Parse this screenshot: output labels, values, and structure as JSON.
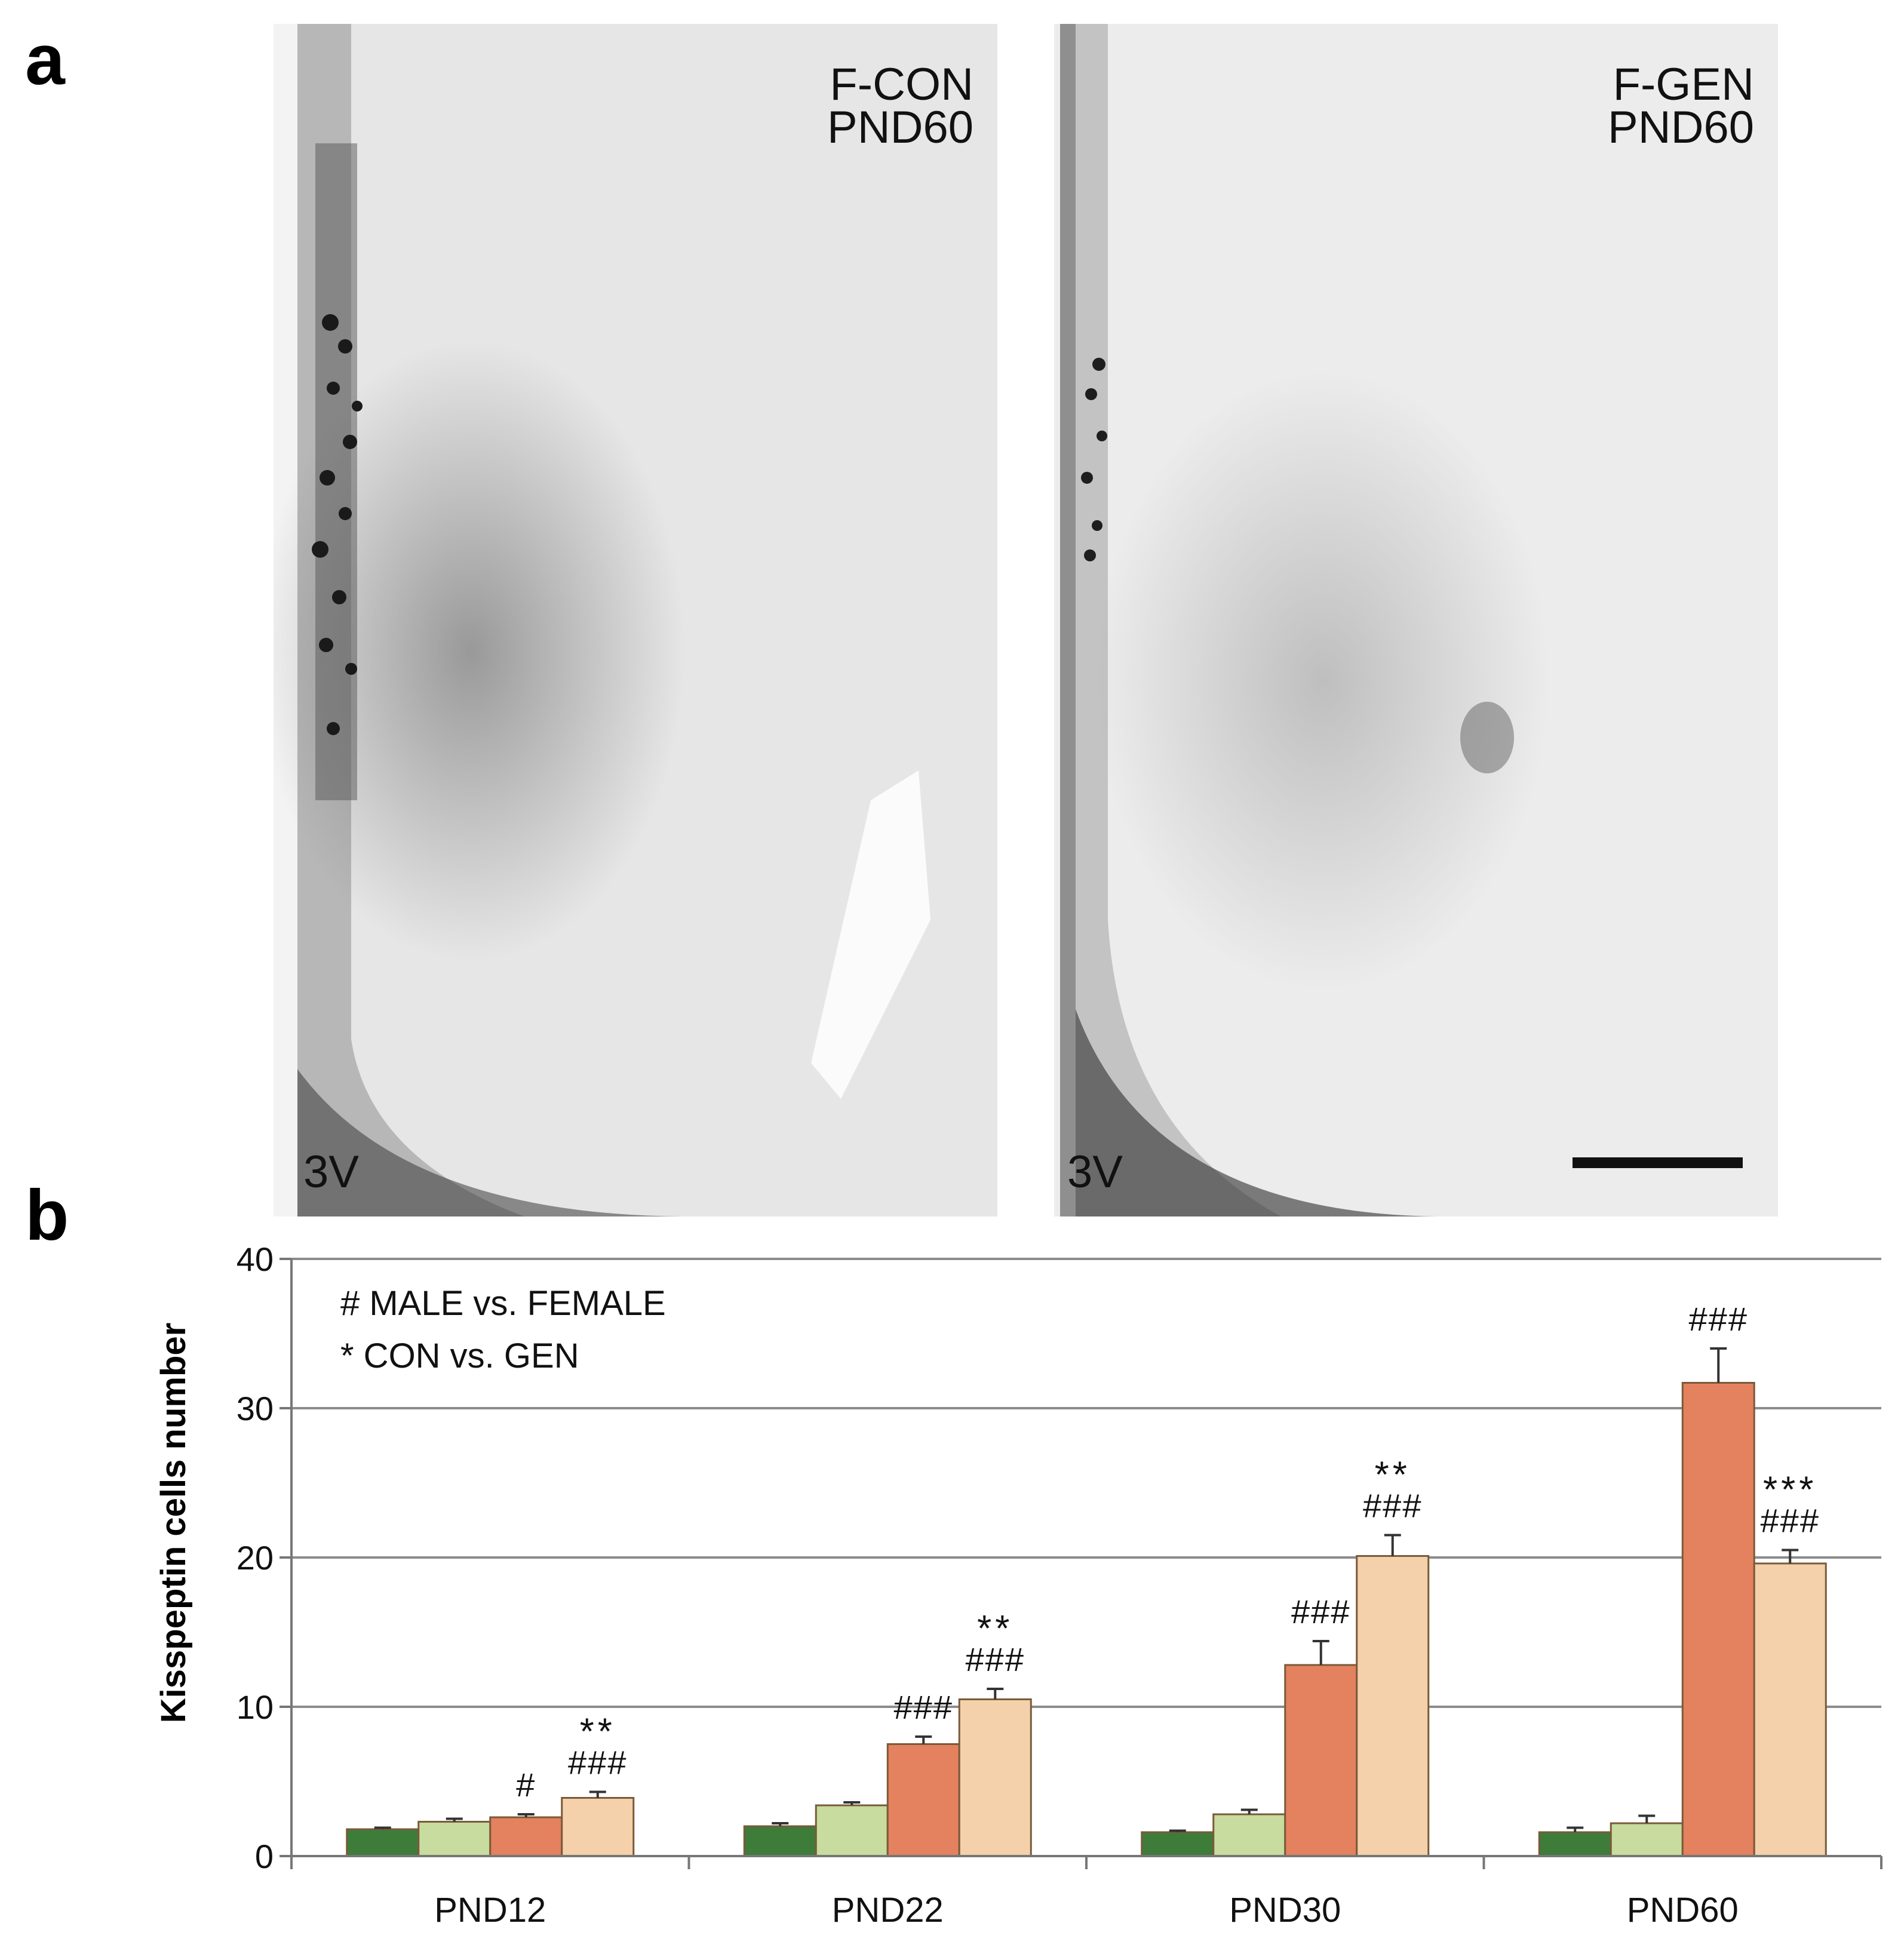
{
  "panels": {
    "a_label": "a",
    "b_label": "b"
  },
  "micrographs": [
    {
      "label_line1": "F-CON",
      "label_line2": "PND60",
      "corner_label": "3V"
    },
    {
      "label_line1": "F-GEN",
      "label_line2": "PND60",
      "corner_label": "3V"
    }
  ],
  "chart_data": {
    "type": "bar",
    "ylabel": "Kisspeptin cells number",
    "ylim": [
      0,
      40
    ],
    "yticks": [
      0,
      10,
      20,
      30,
      40
    ],
    "grid": true,
    "categories": [
      "PND12",
      "PND22",
      "PND30",
      "PND60"
    ],
    "series": [
      {
        "color": "#3e7c3a",
        "values": [
          1.8,
          2.0,
          1.6,
          1.6
        ],
        "errors": [
          0.1,
          0.2,
          0.1,
          0.3
        ]
      },
      {
        "color": "#c7dc9e",
        "values": [
          2.3,
          3.4,
          2.8,
          2.2
        ],
        "errors": [
          0.2,
          0.2,
          0.3,
          0.5
        ]
      },
      {
        "color": "#e4815f",
        "values": [
          2.6,
          7.5,
          12.8,
          31.7
        ],
        "errors": [
          0.2,
          0.5,
          1.6,
          2.3
        ]
      },
      {
        "color": "#f4d1aa",
        "values": [
          3.9,
          10.5,
          20.1,
          19.6
        ],
        "errors": [
          0.4,
          0.7,
          1.4,
          0.9
        ]
      }
    ],
    "significance": [
      [
        null,
        null,
        {
          "lines": [
            "#"
          ]
        },
        {
          "lines": [
            "**",
            "###"
          ]
        }
      ],
      [
        null,
        null,
        {
          "lines": [
            "###"
          ]
        },
        {
          "lines": [
            "**",
            "###"
          ]
        }
      ],
      [
        null,
        null,
        {
          "lines": [
            "###"
          ]
        },
        {
          "lines": [
            "**",
            "###"
          ]
        }
      ],
      [
        null,
        null,
        {
          "lines": [
            "###"
          ]
        },
        {
          "lines": [
            "***",
            "###"
          ]
        }
      ]
    ],
    "legend_notes": [
      "# MALE vs. FEMALE",
      "* CON vs. GEN"
    ],
    "legend_placement": "top-left"
  }
}
